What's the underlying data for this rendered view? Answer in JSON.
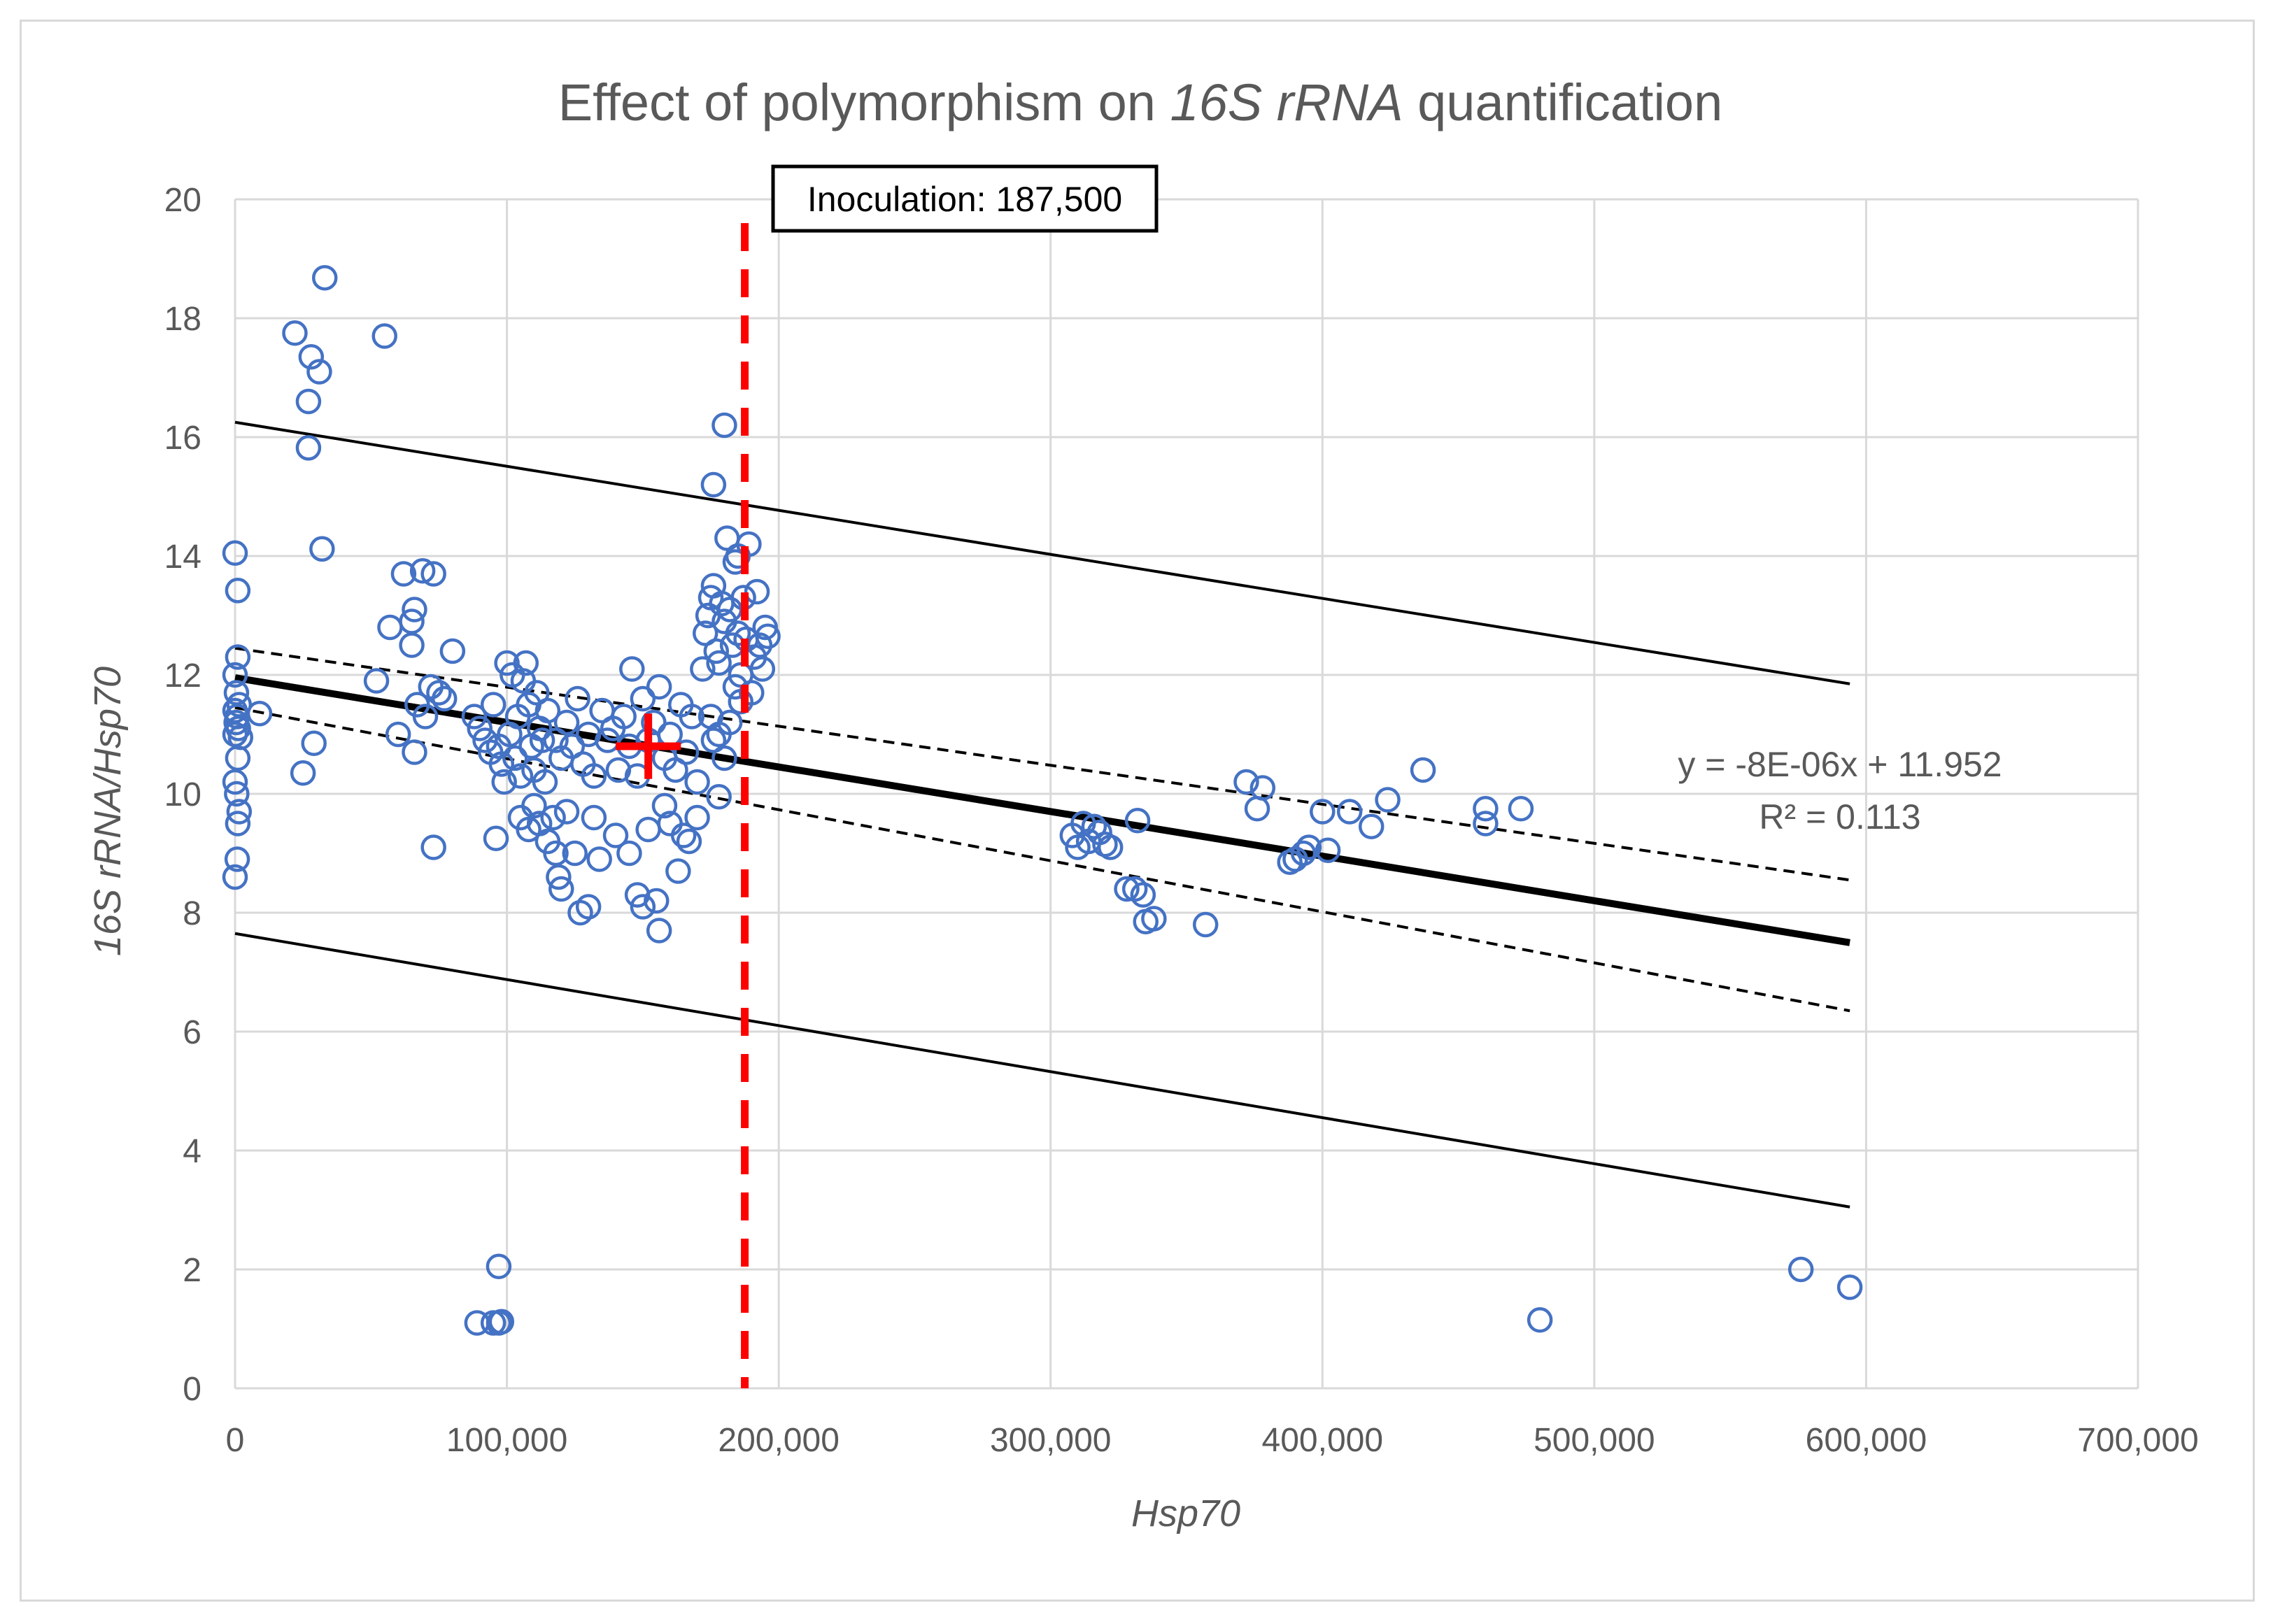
{
  "chart_data": {
    "type": "scatter",
    "title": {
      "prefix": "Effect of polymorphism on ",
      "italic": "16S rRNA",
      "suffix": " quantification"
    },
    "xlabel": "Hsp70",
    "ylabel": "16S rRNA/Hsp70",
    "xlim": [
      0,
      700000
    ],
    "ylim": [
      0,
      20
    ],
    "x_ticks": [
      0,
      100000,
      200000,
      300000,
      400000,
      500000,
      600000,
      700000
    ],
    "x_tick_labels": [
      "0",
      "100,000",
      "200,000",
      "300,000",
      "400,000",
      "500,000",
      "600,000",
      "700,000"
    ],
    "y_ticks": [
      0,
      2,
      4,
      6,
      8,
      10,
      12,
      14,
      16,
      18,
      20
    ],
    "y_tick_labels": [
      "0",
      "2",
      "4",
      "6",
      "8",
      "10",
      "12",
      "14",
      "16",
      "18",
      "20"
    ],
    "grid": true,
    "colors": {
      "marker": "#4472c4",
      "grid": "#d9d9d9",
      "trend": "#000000",
      "inoculation": "#ff0000",
      "mean_cross": "#ff0000",
      "text": "#595959"
    },
    "series": [
      {
        "name": "Samples",
        "marker": "open-circle",
        "points": [
          [
            0,
            14.05
          ],
          [
            1000,
            13.42
          ],
          [
            1000,
            12.3
          ],
          [
            0,
            12.0
          ],
          [
            500,
            11.7
          ],
          [
            1500,
            11.5
          ],
          [
            0,
            11.4
          ],
          [
            800,
            11.3
          ],
          [
            400,
            11.2
          ],
          [
            1200,
            11.1
          ],
          [
            0,
            11.0
          ],
          [
            2000,
            10.95
          ],
          [
            1000,
            10.6
          ],
          [
            0,
            10.2
          ],
          [
            600,
            10.0
          ],
          [
            1500,
            9.7
          ],
          [
            1000,
            9.5
          ],
          [
            800,
            8.9
          ],
          [
            0,
            8.6
          ],
          [
            9000,
            11.35
          ],
          [
            22000,
            17.75
          ],
          [
            28000,
            17.35
          ],
          [
            31000,
            17.1
          ],
          [
            33000,
            18.68
          ],
          [
            27000,
            16.6
          ],
          [
            27000,
            15.82
          ],
          [
            32000,
            14.12
          ],
          [
            29000,
            10.85
          ],
          [
            25000,
            10.35
          ],
          [
            55000,
            17.7
          ],
          [
            52000,
            11.9
          ],
          [
            57000,
            12.8
          ],
          [
            60000,
            11.0
          ],
          [
            62000,
            13.7
          ],
          [
            65000,
            12.9
          ],
          [
            65000,
            12.5
          ],
          [
            66000,
            13.1
          ],
          [
            66000,
            10.7
          ],
          [
            67000,
            11.5
          ],
          [
            69000,
            13.75
          ],
          [
            70000,
            11.3
          ],
          [
            72000,
            11.8
          ],
          [
            73000,
            13.7
          ],
          [
            75000,
            11.7
          ],
          [
            73000,
            9.1
          ],
          [
            80000,
            12.4
          ],
          [
            77000,
            11.6
          ],
          [
            88000,
            11.3
          ],
          [
            90000,
            11.1
          ],
          [
            92000,
            10.9
          ],
          [
            94000,
            10.7
          ],
          [
            95000,
            11.5
          ],
          [
            97000,
            10.8
          ],
          [
            98000,
            10.5
          ],
          [
            99000,
            10.2
          ],
          [
            100000,
            12.2
          ],
          [
            101000,
            11.0
          ],
          [
            102000,
            12.0
          ],
          [
            103000,
            10.6
          ],
          [
            104000,
            11.3
          ],
          [
            105000,
            10.3
          ],
          [
            106000,
            11.9
          ],
          [
            107000,
            12.2
          ],
          [
            108000,
            11.5
          ],
          [
            109000,
            10.8
          ],
          [
            110000,
            10.4
          ],
          [
            111000,
            11.7
          ],
          [
            112000,
            11.1
          ],
          [
            113000,
            10.9
          ],
          [
            114000,
            10.2
          ],
          [
            115000,
            11.4
          ],
          [
            105000,
            9.6
          ],
          [
            108000,
            9.4
          ],
          [
            110000,
            9.8
          ],
          [
            112000,
            9.5
          ],
          [
            115000,
            9.2
          ],
          [
            117000,
            9.6
          ],
          [
            118000,
            9.0
          ],
          [
            119000,
            8.6
          ],
          [
            120000,
            8.4
          ],
          [
            122000,
            9.7
          ],
          [
            125000,
            9.0
          ],
          [
            127000,
            8.0
          ],
          [
            130000,
            8.1
          ],
          [
            132000,
            9.6
          ],
          [
            134000,
            8.9
          ],
          [
            96000,
            9.25
          ],
          [
            118000,
            10.9
          ],
          [
            120000,
            10.6
          ],
          [
            122000,
            11.2
          ],
          [
            124000,
            10.8
          ],
          [
            126000,
            11.6
          ],
          [
            128000,
            10.5
          ],
          [
            130000,
            11.0
          ],
          [
            132000,
            10.3
          ],
          [
            135000,
            11.4
          ],
          [
            137000,
            10.9
          ],
          [
            139000,
            11.1
          ],
          [
            141000,
            10.4
          ],
          [
            143000,
            11.3
          ],
          [
            145000,
            10.8
          ],
          [
            146000,
            12.1
          ],
          [
            148000,
            10.3
          ],
          [
            150000,
            11.6
          ],
          [
            152000,
            10.9
          ],
          [
            154000,
            11.2
          ],
          [
            156000,
            11.8
          ],
          [
            158000,
            10.6
          ],
          [
            160000,
            11.0
          ],
          [
            162000,
            10.4
          ],
          [
            164000,
            11.5
          ],
          [
            166000,
            10.7
          ],
          [
            168000,
            11.3
          ],
          [
            170000,
            10.2
          ],
          [
            140000,
            9.3
          ],
          [
            145000,
            9.0
          ],
          [
            148000,
            8.3
          ],
          [
            150000,
            8.1
          ],
          [
            152000,
            9.4
          ],
          [
            155000,
            8.2
          ],
          [
            156000,
            7.7
          ],
          [
            158000,
            9.8
          ],
          [
            160000,
            9.5
          ],
          [
            163000,
            8.7
          ],
          [
            165000,
            9.3
          ],
          [
            167000,
            9.2
          ],
          [
            170000,
            9.6
          ],
          [
            178000,
            9.95
          ],
          [
            172000,
            12.1
          ],
          [
            173000,
            12.7
          ],
          [
            174000,
            13.0
          ],
          [
            175000,
            13.3
          ],
          [
            176000,
            13.5
          ],
          [
            176000,
            15.2
          ],
          [
            177000,
            12.4
          ],
          [
            178000,
            12.2
          ],
          [
            179000,
            13.2
          ],
          [
            180000,
            16.2
          ],
          [
            180000,
            12.9
          ],
          [
            181000,
            14.3
          ],
          [
            182000,
            13.1
          ],
          [
            183000,
            12.5
          ],
          [
            184000,
            13.9
          ],
          [
            185000,
            12.7
          ],
          [
            185000,
            14.0
          ],
          [
            186000,
            12.0
          ],
          [
            187000,
            13.3
          ],
          [
            188000,
            12.6
          ],
          [
            189000,
            14.2
          ],
          [
            190000,
            11.7
          ],
          [
            191000,
            12.3
          ],
          [
            192000,
            13.4
          ],
          [
            193000,
            12.5
          ],
          [
            194000,
            12.1
          ],
          [
            195000,
            12.8
          ],
          [
            196000,
            12.65
          ],
          [
            184000,
            11.8
          ],
          [
            186000,
            11.55
          ],
          [
            175000,
            11.3
          ],
          [
            178000,
            11.0
          ],
          [
            182000,
            11.2
          ],
          [
            180000,
            10.6
          ],
          [
            176000,
            10.9
          ],
          [
            308000,
            9.3
          ],
          [
            310000,
            9.1
          ],
          [
            312000,
            9.5
          ],
          [
            314000,
            9.2
          ],
          [
            316000,
            9.45
          ],
          [
            318000,
            9.35
          ],
          [
            320000,
            9.15
          ],
          [
            322000,
            9.1
          ],
          [
            332000,
            9.55
          ],
          [
            328000,
            8.4
          ],
          [
            331000,
            8.4
          ],
          [
            334000,
            8.3
          ],
          [
            335000,
            7.85
          ],
          [
            338000,
            7.9
          ],
          [
            357000,
            7.8
          ],
          [
            372000,
            10.2
          ],
          [
            378000,
            10.1
          ],
          [
            376000,
            9.75
          ],
          [
            388000,
            8.85
          ],
          [
            390000,
            8.9
          ],
          [
            393000,
            9.0
          ],
          [
            395000,
            9.1
          ],
          [
            400000,
            9.7
          ],
          [
            402000,
            9.05
          ],
          [
            410000,
            9.7
          ],
          [
            418000,
            9.45
          ],
          [
            424000,
            9.9
          ],
          [
            437000,
            10.4
          ],
          [
            460000,
            9.75
          ],
          [
            460000,
            9.5
          ],
          [
            473000,
            9.75
          ],
          [
            95000,
            1.1
          ],
          [
            89000,
            1.1
          ],
          [
            97000,
            1.1
          ],
          [
            98000,
            1.12
          ],
          [
            97000,
            2.05
          ],
          [
            480000,
            1.15
          ],
          [
            576000,
            2.0
          ],
          [
            594000,
            1.7
          ]
        ]
      }
    ],
    "trendline": {
      "equation": "y = -8E-06x + 11.952",
      "r_squared": "R² = 0.113",
      "slope": -7.5e-06,
      "intercept": 11.952,
      "x_range": [
        0,
        594000
      ]
    },
    "confidence_band": {
      "upper": [
        [
          0,
          12.45
        ],
        [
          594000,
          8.55
        ]
      ],
      "lower": [
        [
          0,
          11.45
        ],
        [
          594000,
          6.35
        ]
      ]
    },
    "prediction_band": {
      "upper": [
        [
          0,
          16.25
        ],
        [
          594000,
          11.85
        ]
      ],
      "lower": [
        [
          0,
          7.65
        ],
        [
          594000,
          3.05
        ]
      ]
    },
    "inoculation": {
      "x": 187500,
      "label": "Inoculation: 187,500"
    },
    "mean_point": {
      "x": 152000,
      "y": 10.8,
      "x_err": 12000,
      "y_err": 0.55
    }
  }
}
